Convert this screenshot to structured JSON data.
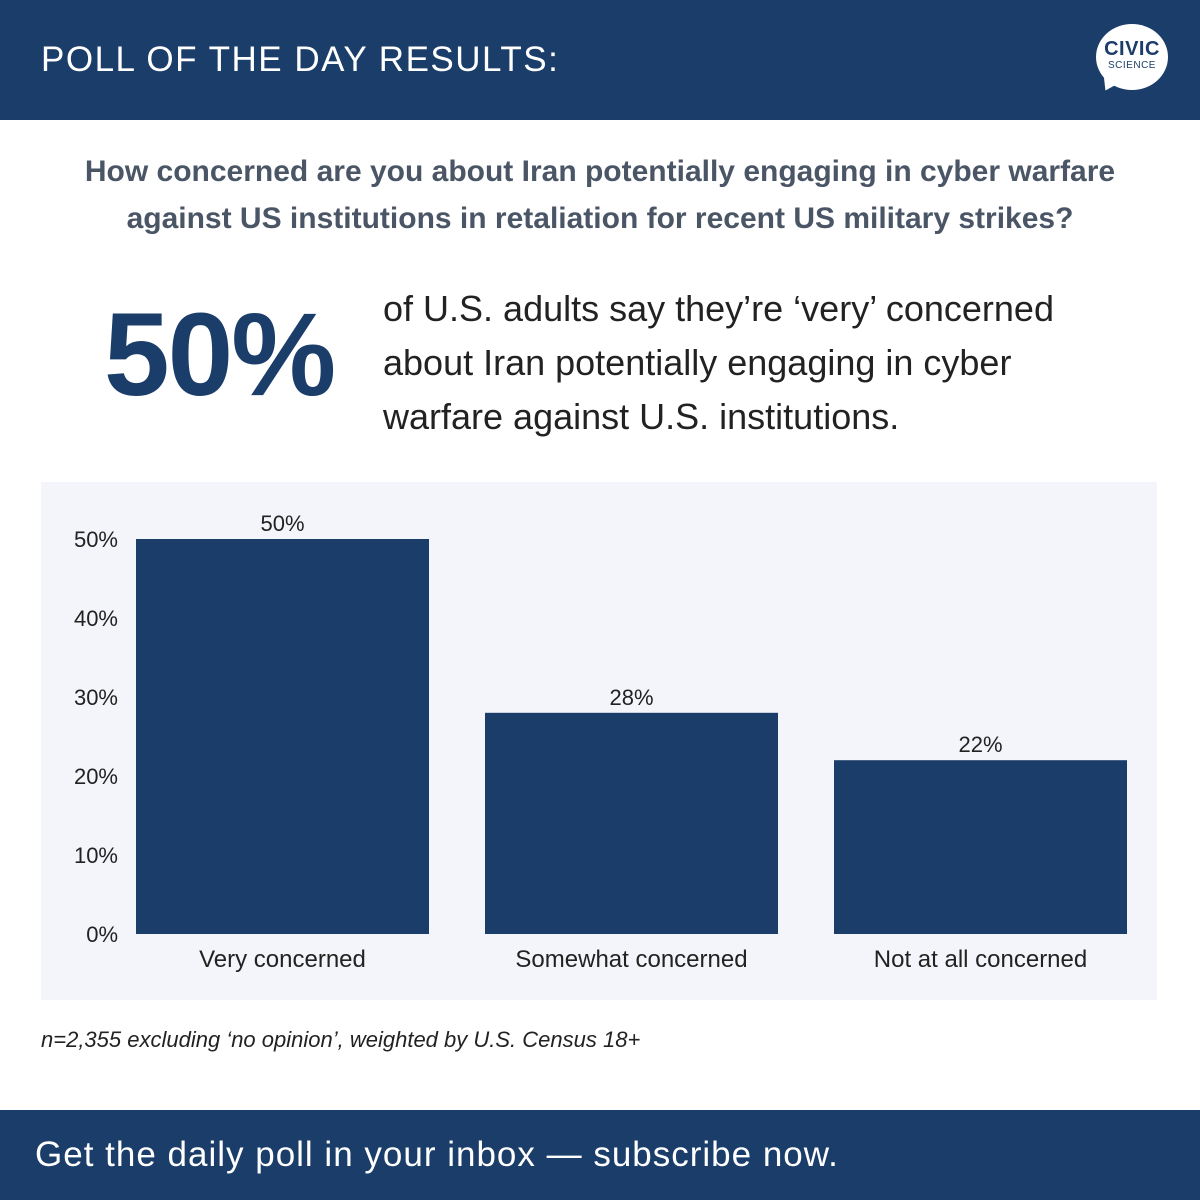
{
  "header": {
    "title": "POLL OF THE DAY RESULTS:",
    "logo": {
      "line1": "CIVIC",
      "line2": "SCIENCE"
    }
  },
  "question": {
    "line1": "How concerned are you about Iran potentially engaging in cyber warfare",
    "line2": "against US institutions in retaliation for recent US military strikes?"
  },
  "highlight": {
    "value": "50%",
    "line1": "of U.S. adults say they’re ‘very’ concerned",
    "line2": "about Iran potentially engaging in cyber",
    "line3": "warfare against U.S. institutions."
  },
  "chart_data": {
    "type": "bar",
    "categories": [
      "Very concerned",
      "Somewhat concerned",
      "Not at all concerned"
    ],
    "values": [
      50,
      28,
      22
    ],
    "value_labels": [
      "50%",
      "28%",
      "22%"
    ],
    "yticks": [
      "0%",
      "10%",
      "20%",
      "30%",
      "40%",
      "50%"
    ],
    "ylim": [
      0,
      50
    ],
    "grid": false,
    "bar_color": "#1b3d6a",
    "background_color": "#f4f5fa"
  },
  "footnote": "n=2,355 excluding ‘no opinion’, weighted by U.S. Census 18+",
  "footer": {
    "cta": "Get the daily poll in your inbox — subscribe now."
  },
  "colors": {
    "brand": "#1b3d6a",
    "question_text": "#4a5566"
  }
}
